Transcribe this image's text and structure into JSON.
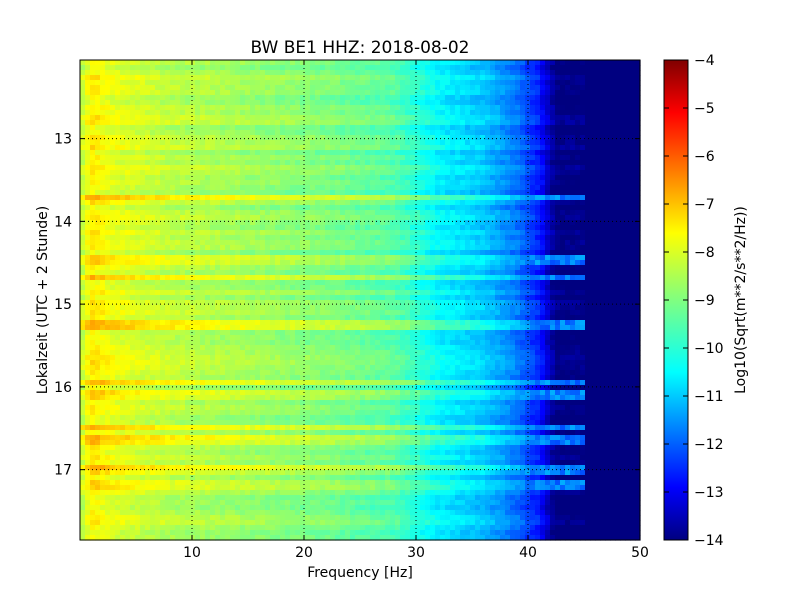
{
  "chart_data": {
    "type": "heatmap",
    "title": "BW BE1 HHZ: 2018-08-02",
    "xlabel": "Frequency [Hz]",
    "ylabel": "Lokalzeit (UTC + 2 Stunde)",
    "xlim": [
      0,
      50
    ],
    "ylim_inverted": [
      12.05,
      17.85
    ],
    "x_ticks": [
      10,
      20,
      30,
      40,
      50
    ],
    "y_ticks": [
      13,
      14,
      15,
      16,
      17
    ],
    "grid": "dotted",
    "colorbar": {
      "label": "Log10(Sqrt(m**2/s**2/Hz))",
      "range": [
        -14,
        -4
      ],
      "ticks": [
        -4,
        -5,
        -6,
        -7,
        -8,
        -9,
        -10,
        -11,
        -12,
        -13,
        -14
      ],
      "colormap": "jet"
    },
    "approx_profile": {
      "freq_hz": [
        0,
        1,
        3,
        8,
        15,
        22,
        28,
        32,
        36,
        39,
        41,
        42.5,
        50
      ],
      "log10_amplitude": [
        -8.5,
        -7.6,
        -8.0,
        -8.4,
        -8.7,
        -9.0,
        -9.4,
        -10.3,
        -10.8,
        -11.6,
        -12.5,
        -14,
        -14
      ]
    },
    "strong_bands_hour": [
      13.7,
      14.48,
      14.68,
      15.25,
      15.95,
      16.1,
      16.5,
      16.65,
      17.0,
      17.18
    ],
    "strong_band_max_freq_hz": 45
  },
  "colors": {
    "background": "#ffffff",
    "axes_frame": "#000000"
  }
}
